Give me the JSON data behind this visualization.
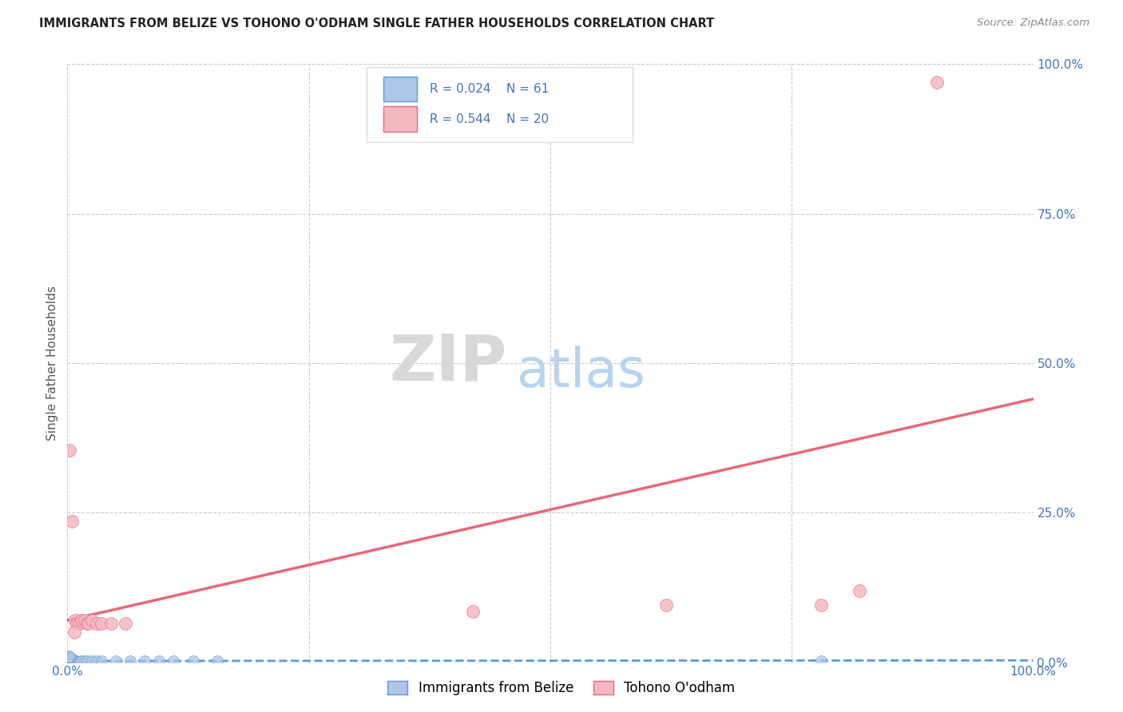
{
  "title": "IMMIGRANTS FROM BELIZE VS TOHONO O'ODHAM SINGLE FATHER HOUSEHOLDS CORRELATION CHART",
  "source": "Source: ZipAtlas.com",
  "ylabel": "Single Father Households",
  "xlim": [
    0,
    1.0
  ],
  "ylim": [
    0,
    1.0
  ],
  "legend_labels": [
    "Immigrants from Belize",
    "Tohono O'odham"
  ],
  "legend_r_n": [
    {
      "R": "0.024",
      "N": "61"
    },
    {
      "R": "0.544",
      "N": "20"
    }
  ],
  "background_color": "#ffffff",
  "grid_color": "#cccccc",
  "blue_scatter": [
    [
      0.0,
      0.0
    ],
    [
      0.001,
      0.001
    ],
    [
      0.002,
      0.001
    ],
    [
      0.001,
      0.002
    ],
    [
      0.003,
      0.001
    ],
    [
      0.001,
      0.003
    ],
    [
      0.002,
      0.002
    ],
    [
      0.004,
      0.001
    ],
    [
      0.001,
      0.004
    ],
    [
      0.003,
      0.002
    ],
    [
      0.002,
      0.003
    ],
    [
      0.005,
      0.001
    ],
    [
      0.001,
      0.005
    ],
    [
      0.004,
      0.002
    ],
    [
      0.002,
      0.004
    ],
    [
      0.003,
      0.003
    ],
    [
      0.006,
      0.001
    ],
    [
      0.001,
      0.006
    ],
    [
      0.005,
      0.002
    ],
    [
      0.002,
      0.005
    ],
    [
      0.004,
      0.003
    ],
    [
      0.003,
      0.004
    ],
    [
      0.007,
      0.001
    ],
    [
      0.001,
      0.007
    ],
    [
      0.006,
      0.002
    ],
    [
      0.002,
      0.006
    ],
    [
      0.005,
      0.003
    ],
    [
      0.003,
      0.005
    ],
    [
      0.008,
      0.001
    ],
    [
      0.001,
      0.008
    ],
    [
      0.007,
      0.002
    ],
    [
      0.002,
      0.007
    ],
    [
      0.006,
      0.003
    ],
    [
      0.003,
      0.006
    ],
    [
      0.009,
      0.001
    ],
    [
      0.001,
      0.009
    ],
    [
      0.008,
      0.002
    ],
    [
      0.002,
      0.008
    ],
    [
      0.007,
      0.003
    ],
    [
      0.003,
      0.007
    ],
    [
      0.01,
      0.001
    ],
    [
      0.001,
      0.01
    ],
    [
      0.009,
      0.002
    ],
    [
      0.002,
      0.009
    ],
    [
      0.011,
      0.001
    ],
    [
      0.012,
      0.001
    ],
    [
      0.013,
      0.001
    ],
    [
      0.015,
      0.002
    ],
    [
      0.018,
      0.002
    ],
    [
      0.02,
      0.002
    ],
    [
      0.025,
      0.002
    ],
    [
      0.03,
      0.002
    ],
    [
      0.035,
      0.002
    ],
    [
      0.05,
      0.002
    ],
    [
      0.065,
      0.002
    ],
    [
      0.08,
      0.002
    ],
    [
      0.095,
      0.002
    ],
    [
      0.11,
      0.002
    ],
    [
      0.13,
      0.002
    ],
    [
      0.155,
      0.002
    ],
    [
      0.78,
      0.002
    ]
  ],
  "pink_scatter": [
    [
      0.002,
      0.355
    ],
    [
      0.005,
      0.235
    ],
    [
      0.008,
      0.07
    ],
    [
      0.01,
      0.065
    ],
    [
      0.012,
      0.065
    ],
    [
      0.015,
      0.07
    ],
    [
      0.018,
      0.07
    ],
    [
      0.02,
      0.065
    ],
    [
      0.022,
      0.065
    ],
    [
      0.025,
      0.07
    ],
    [
      0.03,
      0.065
    ],
    [
      0.035,
      0.065
    ],
    [
      0.045,
      0.065
    ],
    [
      0.06,
      0.065
    ],
    [
      0.42,
      0.085
    ],
    [
      0.62,
      0.095
    ],
    [
      0.78,
      0.095
    ],
    [
      0.82,
      0.12
    ],
    [
      0.9,
      0.97
    ],
    [
      0.007,
      0.05
    ]
  ],
  "blue_line_x": [
    0.0,
    1.0
  ],
  "blue_line_y": [
    0.002,
    0.003
  ],
  "pink_line_x": [
    0.0,
    1.0
  ],
  "pink_line_y": [
    0.07,
    0.44
  ],
  "blue_scatter_color": "#aec6e8",
  "pink_scatter_color": "#f4b8c1",
  "blue_line_color": "#5b9bd5",
  "pink_line_color": "#e8677a",
  "marker_size_blue": 100,
  "marker_size_pink": 130,
  "tick_color": "#4472c4",
  "ylabel_color": "#555555",
  "title_color": "#222222",
  "source_color": "#888888"
}
